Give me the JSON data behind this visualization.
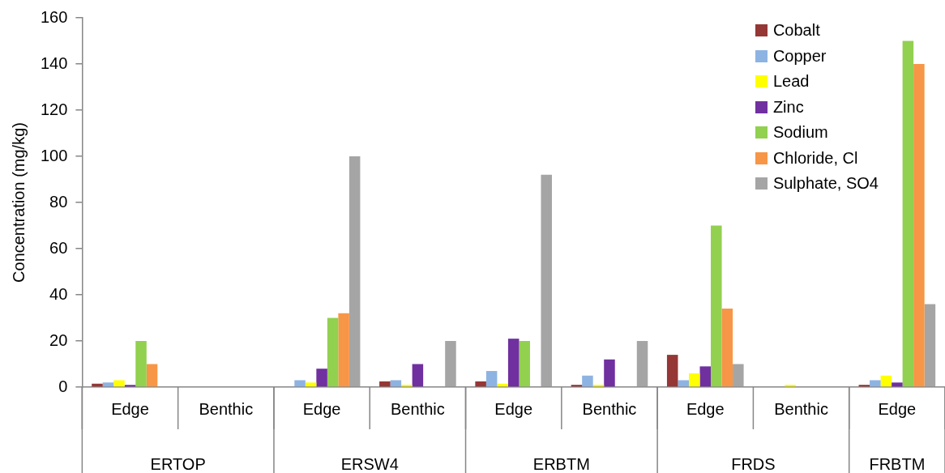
{
  "chart_data": {
    "type": "bar",
    "ylabel": "Concentration (mg/kg)",
    "categories": [
      "Edge",
      "Benthic",
      "Edge",
      "Benthic",
      "Edge",
      "Benthic",
      "Edge",
      "Benthic",
      "Edge"
    ],
    "annotations": [
      "ERTOP",
      "ERSW4",
      "ERBTM",
      "FRDS",
      "FRBTM"
    ],
    "ylim": [
      0,
      160
    ],
    "yticks": [
      0,
      20,
      40,
      60,
      80,
      100,
      120,
      140,
      160
    ],
    "grid": false,
    "legend": "top right",
    "series": [
      {
        "name": "Cobalt",
        "color": "#953735",
        "values": [
          1.5,
          null,
          null,
          2.5,
          2.5,
          1,
          14,
          null,
          1
        ]
      },
      {
        "name": "Copper",
        "color": "#8db3e2",
        "values": [
          2,
          null,
          3,
          3,
          7,
          5,
          3,
          null,
          3
        ]
      },
      {
        "name": "Lead",
        "color": "#ffff00",
        "values": [
          3,
          null,
          2,
          1,
          1.5,
          1,
          6,
          1,
          5
        ]
      },
      {
        "name": "Zinc",
        "color": "#7030a0",
        "values": [
          1,
          null,
          8,
          10,
          21,
          12,
          9,
          null,
          2
        ]
      },
      {
        "name": "Sodium",
        "color": "#92d050",
        "values": [
          20,
          null,
          30,
          null,
          20,
          null,
          70,
          null,
          150
        ]
      },
      {
        "name": "Chloride, Cl",
        "color": "#f79646",
        "values": [
          10,
          null,
          32,
          null,
          null,
          null,
          34,
          null,
          140
        ]
      },
      {
        "name": "Sulphate, SO4",
        "color": "#a5a5a5",
        "values": [
          null,
          null,
          100,
          20,
          92,
          20,
          10,
          null,
          36
        ]
      }
    ]
  }
}
